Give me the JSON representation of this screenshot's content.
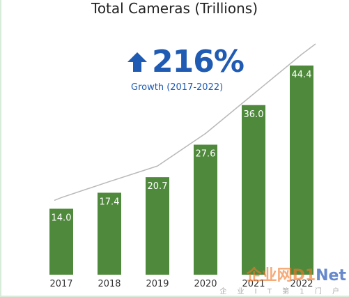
{
  "chart_data": {
    "type": "bar",
    "title": "Total Cameras (Trillions)",
    "headline": {
      "value": "216%",
      "subtitle": "Growth (2017-2022)",
      "icon": "up-arrow-icon"
    },
    "categories": [
      "2017",
      "2018",
      "2019",
      "2020",
      "2021",
      "2022"
    ],
    "values": [
      14.0,
      17.4,
      20.7,
      27.6,
      36.0,
      44.4
    ],
    "value_labels": [
      "14.0",
      "17.4",
      "20.7",
      "27.6",
      "36.0",
      "44.4"
    ],
    "trendline": true,
    "ylim": [
      0,
      44.4
    ],
    "grid": false,
    "colors": {
      "bar": "#4f8a3c",
      "trendline": "#b9b9b9",
      "headline": "#1f5bb3",
      "label": "#ffffff"
    }
  },
  "watermark": {
    "text": "企业网D1Net",
    "subtext": "企业IT第1门户"
  }
}
